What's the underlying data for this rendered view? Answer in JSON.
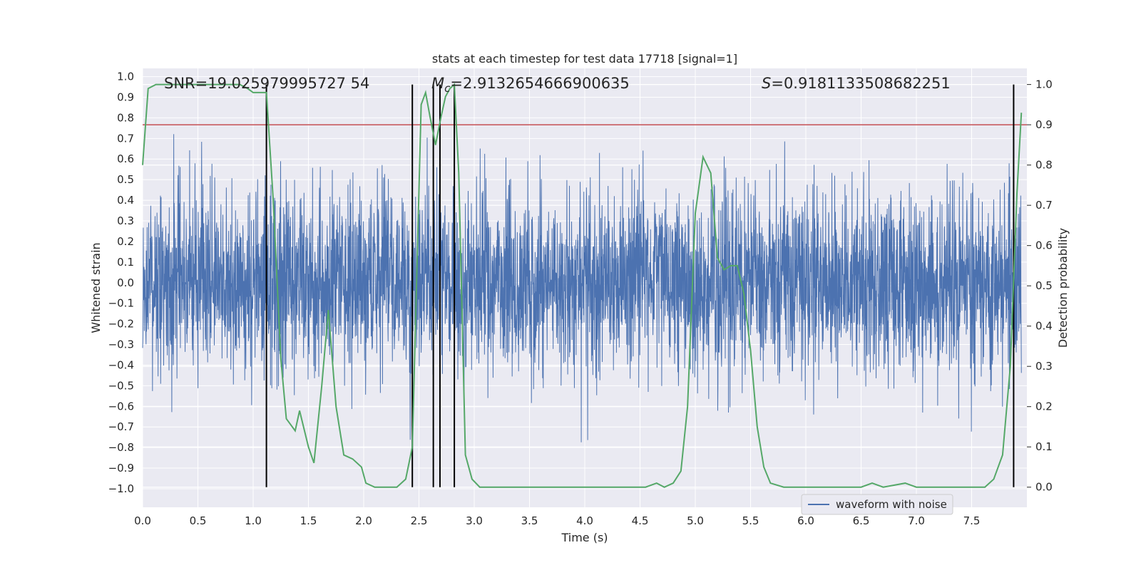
{
  "chart_data": {
    "type": "line",
    "title": "stats at each timestep for test data 17718 [signal=1]",
    "xlabel": "Time (s)",
    "ylabel_left": "Whitened strain",
    "ylabel_right": "Detection probability",
    "xlim": [
      0.0,
      8.0
    ],
    "ylim_left": [
      -1.09,
      1.04
    ],
    "ylim_right": [
      -0.05,
      1.04
    ],
    "xticks": [
      0.0,
      0.5,
      1.0,
      1.5,
      2.0,
      2.5,
      3.0,
      3.5,
      4.0,
      4.5,
      5.0,
      5.5,
      6.0,
      6.5,
      7.0,
      7.5
    ],
    "xtick_labels": [
      "0.0",
      "0.5",
      "1.0",
      "1.5",
      "2.0",
      "2.5",
      "3.0",
      "3.5",
      "4.0",
      "4.5",
      "5.0",
      "5.5",
      "6.0",
      "6.5",
      "7.0",
      "7.5"
    ],
    "yticks_left": [
      1.0,
      0.9,
      0.8,
      0.7,
      0.6,
      0.5,
      0.4,
      0.3,
      0.2,
      0.1,
      0.0,
      -0.1,
      -0.2,
      -0.3,
      -0.4,
      -0.5,
      -0.6,
      -0.7,
      -0.8,
      -0.9,
      -1.0
    ],
    "ytick_labels_left": [
      "1.0",
      "0.9",
      "0.8",
      "0.7",
      "0.6",
      "0.5",
      "0.4",
      "0.3",
      "0.2",
      "0.1",
      "0.0",
      "−0.1",
      "−0.2",
      "−0.3",
      "−0.4",
      "−0.5",
      "−0.6",
      "−0.7",
      "−0.8",
      "−0.9",
      "−1.0"
    ],
    "yticks_right": [
      1.0,
      0.9,
      0.8,
      0.7,
      0.6,
      0.5,
      0.4,
      0.3,
      0.2,
      0.1,
      0.0
    ],
    "ytick_labels_right": [
      "1.0",
      "0.9",
      "0.8",
      "0.7",
      "0.6",
      "0.5",
      "0.4",
      "0.3",
      "0.2",
      "0.1",
      "0.0"
    ],
    "grid": true,
    "legend_position": "bottom-right",
    "legend_entries": [
      "waveform with noise"
    ],
    "annotations": {
      "snr": "SNR=19.025979995727 54",
      "mc_symbol": "M",
      "mc_sub": "c",
      "mc_value": "=2.9132654666900635",
      "s_symbol": "S",
      "s_value": "=0.9181133508682251"
    },
    "threshold_right": 0.9,
    "vertical_lines_x": [
      1.12,
      2.44,
      2.63,
      2.69,
      2.82,
      7.88
    ],
    "waveform_series": {
      "name": "waveform with noise",
      "color": "#4c72b0",
      "noise_std": 0.22,
      "samples": 4096,
      "seed": 17718
    },
    "probability_series": {
      "color": "#55a868",
      "x": [
        0.0,
        0.05,
        0.12,
        0.2,
        0.3,
        0.4,
        0.5,
        0.6,
        0.7,
        0.8,
        0.88,
        0.95,
        1.0,
        1.07,
        1.12,
        1.18,
        1.25,
        1.3,
        1.38,
        1.42,
        1.5,
        1.55,
        1.62,
        1.68,
        1.75,
        1.82,
        1.9,
        1.98,
        2.02,
        2.1,
        2.2,
        2.3,
        2.38,
        2.44,
        2.52,
        2.56,
        2.6,
        2.65,
        2.7,
        2.74,
        2.78,
        2.82,
        2.86,
        2.92,
        2.98,
        3.05,
        3.15,
        3.3,
        3.5,
        3.8,
        4.0,
        4.3,
        4.55,
        4.65,
        4.72,
        4.8,
        4.87,
        4.93,
        5.0,
        5.07,
        5.14,
        5.2,
        5.26,
        5.32,
        5.38,
        5.44,
        5.5,
        5.56,
        5.62,
        5.68,
        5.8,
        6.2,
        6.5,
        6.6,
        6.7,
        6.9,
        7.0,
        7.2,
        7.5,
        7.62,
        7.7,
        7.78,
        7.85,
        7.91,
        7.95
      ],
      "y": [
        0.8,
        0.99,
        1.0,
        1.0,
        1.0,
        1.0,
        1.0,
        1.0,
        1.0,
        1.0,
        1.0,
        0.99,
        0.98,
        0.98,
        0.98,
        0.72,
        0.32,
        0.17,
        0.14,
        0.19,
        0.1,
        0.06,
        0.25,
        0.44,
        0.2,
        0.08,
        0.07,
        0.05,
        0.01,
        0.0,
        0.0,
        0.0,
        0.02,
        0.1,
        0.95,
        0.98,
        0.92,
        0.85,
        0.92,
        0.97,
        0.99,
        1.0,
        0.78,
        0.08,
        0.02,
        0.0,
        0.0,
        0.0,
        0.0,
        0.0,
        0.0,
        0.0,
        0.0,
        0.01,
        0.0,
        0.01,
        0.04,
        0.2,
        0.68,
        0.82,
        0.78,
        0.57,
        0.54,
        0.55,
        0.55,
        0.48,
        0.34,
        0.15,
        0.05,
        0.01,
        0.0,
        0.0,
        0.0,
        0.01,
        0.0,
        0.01,
        0.0,
        0.0,
        0.0,
        0.0,
        0.02,
        0.08,
        0.3,
        0.73,
        0.93
      ]
    },
    "colors": {
      "axes_bg": "#eaeaf2",
      "grid": "#ffffff",
      "threshold": "#c44e52",
      "vline": "#000000"
    }
  }
}
